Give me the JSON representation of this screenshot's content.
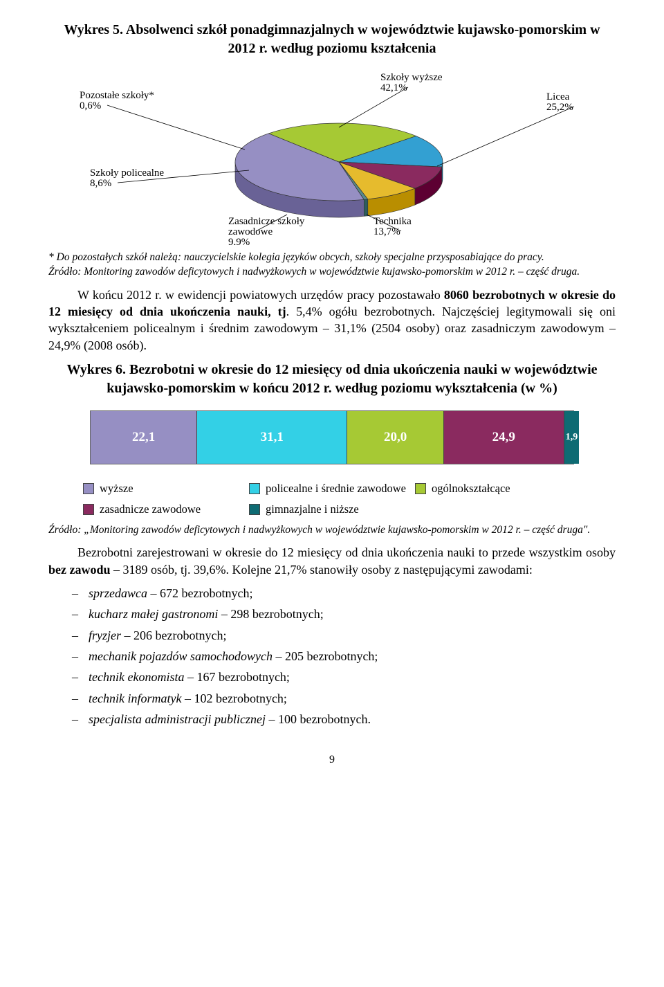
{
  "chart5": {
    "title": "Wykres 5. Absolwenci szkół ponadgimnazjalnych w województwie kujawsko-pomorskim w 2012 r. według poziomu kształcenia",
    "type": "pie",
    "slices": [
      {
        "label": "Szkoły wyższe",
        "value": 42.1,
        "display": "Szkoły wyższe\n42,1%",
        "color": "#968fc3"
      },
      {
        "label": "Licea",
        "value": 25.2,
        "display": "Licea\n25,2%",
        "color": "#a6c934"
      },
      {
        "label": "Technika",
        "value": 13.7,
        "display": "Technika\n13,7%",
        "color": "#33a0d2"
      },
      {
        "label": "Zasadnicze szkoły zawodowe",
        "value": 9.9,
        "display": "Zasadnicze szkoły\nzawodowe\n9,9%",
        "color": "#8a2a5f"
      },
      {
        "label": "Szkoły policealne",
        "value": 8.6,
        "display": "Szkoły policealne\n8,6%",
        "color": "#e6bb2d"
      },
      {
        "label": "Pozostałe szkoły*",
        "value": 0.6,
        "display": "Pozostałe szkoły*\n0,6%",
        "color": "#5a8a8a"
      }
    ],
    "background_color": "#ffffff",
    "label_fontsize": 15,
    "start_angle_deg": 76
  },
  "footnote1_a": "* Do pozostałych szkół należą: nauczycielskie kolegia języków obcych, szkoły specjalne przysposabiające do pracy.",
  "footnote1_b": "Źródło: Monitoring zawodów deficytowych i nadwyżkowych w województwie kujawsko-pomorskim w 2012 r. – część druga.",
  "para1": "W końcu 2012 r. w ewidencji powiatowych urzędów pracy pozostawało 8060 bezrobotnych w okresie do 12 miesięcy od dnia ukończenia nauki, tj. 5,4% ogółu bezrobotnych. Najczęściej legitymowali się oni wykształceniem policealnym i średnim zawodowym – 31,1% (2504 osoby) oraz zasadniczym zawodowym – 24,9% (2008 osób).",
  "chart6": {
    "title": "Wykres 6. Bezrobotni w okresie do 12 miesięcy od dnia ukończenia nauki w województwie kujawsko-pomorskim w końcu 2012 r. według poziomu wykształcenia (w %)",
    "type": "stacked_bar",
    "background_color": "#e9e6f4",
    "label_fontsize": 19,
    "segments": [
      {
        "label": "wyższe",
        "value": 22.1,
        "display": "22,1",
        "color": "#968fc3"
      },
      {
        "label": "policealne i średnie zawodowe",
        "value": 31.1,
        "display": "31,1",
        "color": "#33d0e6"
      },
      {
        "label": "ogólnokształcące",
        "value": 20.0,
        "display": "20,0",
        "color": "#a6c934"
      },
      {
        "label": "zasadnicze zawodowe",
        "value": 24.9,
        "display": "24,9",
        "color": "#8a2a5f"
      },
      {
        "label": "gimnazjalne i niższe",
        "value": 1.9,
        "display": "1,9",
        "color": "#0e6b73"
      }
    ],
    "legend": [
      {
        "label": "wyższe",
        "color": "#968fc3"
      },
      {
        "label": "policealne i średnie zawodowe",
        "color": "#33d0e6"
      },
      {
        "label": "ogólnokształcące",
        "color": "#a6c934"
      },
      {
        "label": "zasadnicze zawodowe",
        "color": "#8a2a5f"
      },
      {
        "label": "gimnazjalne i niższe",
        "color": "#0e6b73"
      }
    ]
  },
  "footnote2": "Źródło: „Monitoring zawodów deficytowych i nadwyżkowych w województwie kujawsko-pomorskim w 2012 r. – część druga\".",
  "para2": "Bezrobotni zarejestrowani w okresie do 12 miesięcy od dnia ukończenia nauki to przede wszystkim osoby bez zawodu – 3189 osób, tj. 39,6%. Kolejne 21,7% stanowiły osoby z następującymi zawodami:",
  "list": [
    "sprzedawca – 672 bezrobotnych;",
    "kucharz małej gastronomi – 298 bezrobotnych;",
    "fryzjer – 206 bezrobotnych;",
    "mechanik pojazdów samochodowych – 205 bezrobotnych;",
    "technik ekonomista – 167 bezrobotnych;",
    "technik informatyk – 102 bezrobotnych;",
    "specjalista administracji publicznej – 100 bezrobotnych."
  ],
  "page_number": "9"
}
